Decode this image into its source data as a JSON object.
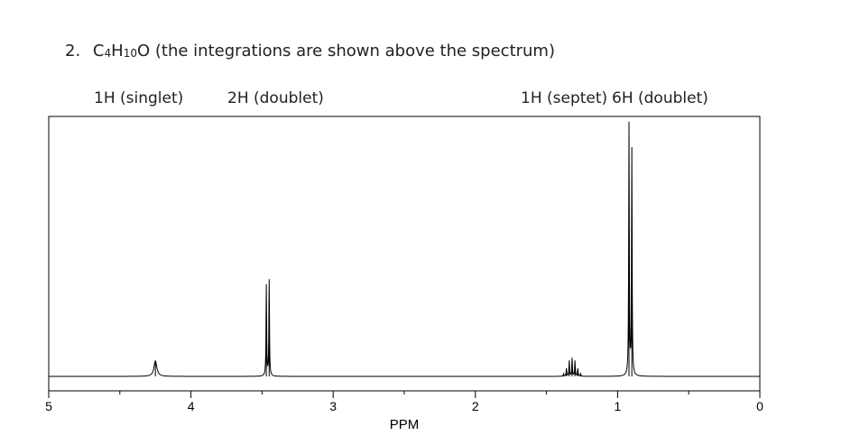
{
  "question": {
    "number": "2.",
    "formula_c": "C",
    "formula_c_sub": "4",
    "formula_h": "H",
    "formula_h_sub": "10",
    "formula_o": "O",
    "note": "(the integrations are shown above the spectrum)"
  },
  "integrations": [
    {
      "label": "1H (singlet)"
    },
    {
      "label": "2H (doublet)"
    },
    {
      "label": "1H (septet)"
    },
    {
      "label": "6H (doublet)"
    }
  ],
  "chart_data": {
    "type": "line",
    "xlabel": "PPM",
    "xlim": [
      5,
      0
    ],
    "x_reversed": true,
    "ylim": [
      0,
      1
    ],
    "grid": false,
    "tick_labels": [
      "5",
      "4",
      "3",
      "2",
      "1",
      "0"
    ],
    "major_ticks": [
      5,
      4,
      3,
      2,
      1,
      0
    ],
    "minor_ticks": [
      4.5,
      3.5,
      2.5,
      1.5,
      0.5
    ],
    "peaks": [
      {
        "name": "singlet",
        "x": [
          4.25
        ],
        "heights": [
          0.06
        ]
      },
      {
        "name": "doublet",
        "x": [
          3.47,
          3.45
        ],
        "heights": [
          0.35,
          0.37
        ]
      },
      {
        "name": "septet",
        "x": [
          1.38,
          1.36,
          1.34,
          1.32,
          1.3,
          1.28,
          1.26
        ],
        "heights": [
          0.01,
          0.03,
          0.06,
          0.07,
          0.06,
          0.03,
          0.01
        ]
      },
      {
        "name": "doublet",
        "x": [
          0.92,
          0.9
        ],
        "heights": [
          0.97,
          0.87
        ]
      }
    ]
  }
}
